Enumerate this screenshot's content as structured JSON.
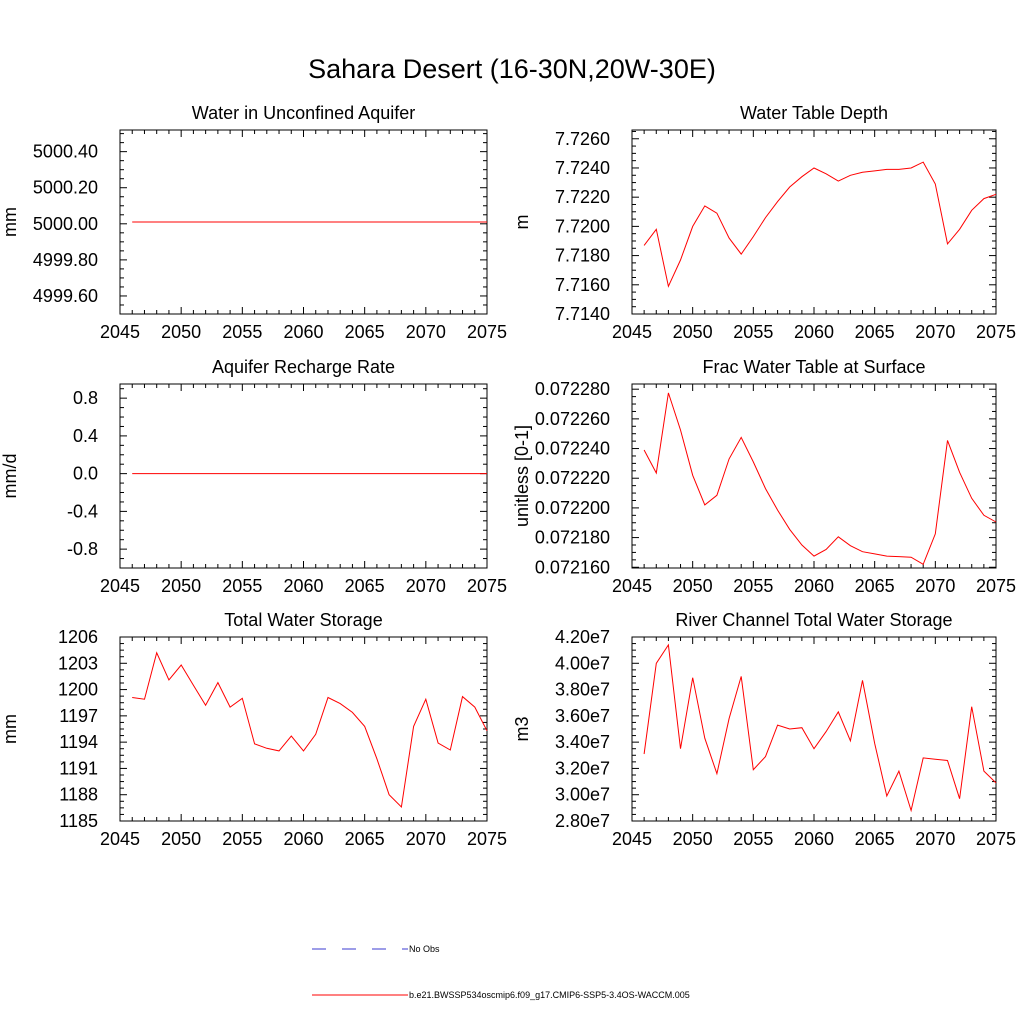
{
  "title": "Sahara Desert (16-30N,20W-30E)",
  "legend": {
    "obs_label": "No Obs",
    "obs_color": "#3b3bd0",
    "model_label": "b.e21.BWSSP534oscmip6.f09_g17.CMIP6-SSP5-3.4OS-WACCM.005",
    "model_color": "#ff0000"
  },
  "chart_data": [
    {
      "type": "line",
      "title": "Water in Unconfined Aquifer",
      "ylabel": "mm",
      "xlim": [
        2045,
        2075
      ],
      "ylim": [
        4999.5,
        5000.52
      ],
      "xticks": [
        2045,
        2050,
        2055,
        2060,
        2065,
        2070,
        2075
      ],
      "yticks": [
        4999.6,
        4999.8,
        5000.0,
        5000.2,
        5000.4
      ],
      "ytick_labels": [
        "4999.60",
        "4999.80",
        "5000.00",
        "5000.20",
        "5000.40"
      ],
      "series": [
        {
          "x": [
            2046,
            2075
          ],
          "y": [
            5000.01,
            5000.01
          ]
        }
      ]
    },
    {
      "type": "line",
      "title": "Water Table Depth",
      "ylabel": "m",
      "xlim": [
        2045,
        2075
      ],
      "ylim": [
        7.714,
        7.7266
      ],
      "xticks": [
        2045,
        2050,
        2055,
        2060,
        2065,
        2070,
        2075
      ],
      "yticks": [
        7.714,
        7.716,
        7.718,
        7.72,
        7.722,
        7.724,
        7.726
      ],
      "ytick_labels": [
        "7.7140",
        "7.7160",
        "7.7180",
        "7.7200",
        "7.7220",
        "7.7240",
        "7.7260"
      ],
      "series": [
        {
          "x": [
            2046,
            2047,
            2048,
            2049,
            2050,
            2051,
            2052,
            2053,
            2054,
            2055,
            2056,
            2057,
            2058,
            2059,
            2060,
            2061,
            2062,
            2063,
            2064,
            2065,
            2066,
            2067,
            2068,
            2069,
            2070,
            2071,
            2072,
            2073,
            2074,
            2075
          ],
          "y": [
            7.7187,
            7.7198,
            7.7159,
            7.7177,
            7.72,
            7.7214,
            7.7209,
            7.7192,
            7.7181,
            7.7193,
            7.7206,
            7.7217,
            7.7227,
            7.7234,
            7.724,
            7.7236,
            7.7231,
            7.7235,
            7.7237,
            7.7238,
            7.7239,
            7.7239,
            7.724,
            7.7244,
            7.7229,
            7.7188,
            7.7198,
            7.7211,
            7.7219,
            7.7222
          ]
        }
      ]
    },
    {
      "type": "line",
      "title": "Aquifer Recharge Rate",
      "ylabel": "mm/d",
      "xlim": [
        2045,
        2075
      ],
      "ylim": [
        -1.0,
        0.95
      ],
      "xticks": [
        2045,
        2050,
        2055,
        2060,
        2065,
        2070,
        2075
      ],
      "yticks": [
        -0.8,
        -0.4,
        0.0,
        0.4,
        0.8
      ],
      "ytick_labels": [
        "-0.8",
        "-0.4",
        "0.0",
        "0.4",
        "0.8"
      ],
      "series": [
        {
          "x": [
            2046,
            2075
          ],
          "y": [
            0.0,
            0.0
          ]
        }
      ]
    },
    {
      "type": "line",
      "title": "Frac Water Table at Surface",
      "ylabel": "unitless [0-1]",
      "xlim": [
        2045,
        2075
      ],
      "ylim": [
        0.0721595,
        0.0722835
      ],
      "xticks": [
        2045,
        2050,
        2055,
        2060,
        2065,
        2070,
        2075
      ],
      "yticks": [
        0.07216,
        0.07218,
        0.0722,
        0.07222,
        0.07224,
        0.07226,
        0.07228
      ],
      "ytick_labels": [
        "0.072160",
        "0.072180",
        "0.072200",
        "0.072220",
        "0.072240",
        "0.072260",
        "0.072280"
      ],
      "series": [
        {
          "x": [
            2046,
            2047,
            2048,
            2049,
            2050,
            2051,
            2052,
            2053,
            2054,
            2055,
            2056,
            2057,
            2058,
            2059,
            2060,
            2061,
            2062,
            2063,
            2064,
            2065,
            2066,
            2067,
            2068,
            2069,
            2070,
            2071,
            2072,
            2073,
            2074,
            2075
          ],
          "y": [
            0.072239,
            0.0722235,
            0.0722775,
            0.0722525,
            0.072222,
            0.072202,
            0.0722085,
            0.072233,
            0.0722475,
            0.072231,
            0.072213,
            0.0721985,
            0.0721855,
            0.072175,
            0.0721675,
            0.072172,
            0.0721805,
            0.0721745,
            0.0721705,
            0.072169,
            0.0721675,
            0.0721672,
            0.0721668,
            0.072162,
            0.0721825,
            0.0722455,
            0.072224,
            0.0722065,
            0.072195,
            0.0721905
          ]
        }
      ]
    },
    {
      "type": "line",
      "title": "Total Water Storage",
      "ylabel": "mm",
      "xlim": [
        2045,
        2075
      ],
      "ylim": [
        1185,
        1206
      ],
      "xticks": [
        2045,
        2050,
        2055,
        2060,
        2065,
        2070,
        2075
      ],
      "yticks": [
        1185,
        1188,
        1191,
        1194,
        1197,
        1200,
        1203,
        1206
      ],
      "ytick_labels": [
        "1185",
        "1188",
        "1191",
        "1194",
        "1197",
        "1200",
        "1203",
        "1206"
      ],
      "series": [
        {
          "x": [
            2046,
            2047,
            2048,
            2049,
            2050,
            2051,
            2052,
            2053,
            2054,
            2055,
            2056,
            2057,
            2058,
            2059,
            2060,
            2061,
            2062,
            2063,
            2064,
            2065,
            2066,
            2067,
            2068,
            2069,
            2070,
            2071,
            2072,
            2073,
            2074,
            2075
          ],
          "y": [
            1199.1,
            1198.9,
            1204.2,
            1201.1,
            1202.8,
            1200.5,
            1198.2,
            1200.8,
            1198.0,
            1199.0,
            1193.8,
            1193.3,
            1193.0,
            1194.7,
            1193.0,
            1194.9,
            1199.1,
            1198.4,
            1197.4,
            1195.8,
            1192.1,
            1188.0,
            1186.6,
            1195.8,
            1198.9,
            1193.9,
            1193.1,
            1199.2,
            1198.0,
            1195.3
          ]
        }
      ]
    },
    {
      "type": "line",
      "title": "River Channel Total Water Storage",
      "ylabel": "m3",
      "xlim": [
        2045,
        2075
      ],
      "ylim": [
        28000000,
        42000000
      ],
      "xticks": [
        2045,
        2050,
        2055,
        2060,
        2065,
        2070,
        2075
      ],
      "yticks": [
        28000000,
        30000000,
        32000000,
        34000000,
        36000000,
        38000000,
        40000000,
        42000000
      ],
      "ytick_labels": [
        "2.80e7",
        "3.00e7",
        "3.20e7",
        "3.40e7",
        "3.60e7",
        "3.80e7",
        "4.00e7",
        "4.20e7"
      ],
      "series": [
        {
          "x": [
            2046,
            2047,
            2048,
            2049,
            2050,
            2051,
            2052,
            2053,
            2054,
            2055,
            2056,
            2057,
            2058,
            2059,
            2060,
            2061,
            2062,
            2063,
            2064,
            2065,
            2066,
            2067,
            2068,
            2069,
            2070,
            2071,
            2072,
            2073,
            2074,
            2075
          ],
          "y": [
            33100000,
            40000000,
            41400000,
            33500000,
            38900000,
            34300000,
            31600000,
            35800000,
            39000000,
            31900000,
            32900000,
            35300000,
            35000000,
            35100000,
            33500000,
            34800000,
            36300000,
            34100000,
            38700000,
            33900000,
            29900000,
            31800000,
            28800000,
            32800000,
            32700000,
            32600000,
            29700000,
            36700000,
            31800000,
            30900000
          ]
        }
      ]
    }
  ]
}
